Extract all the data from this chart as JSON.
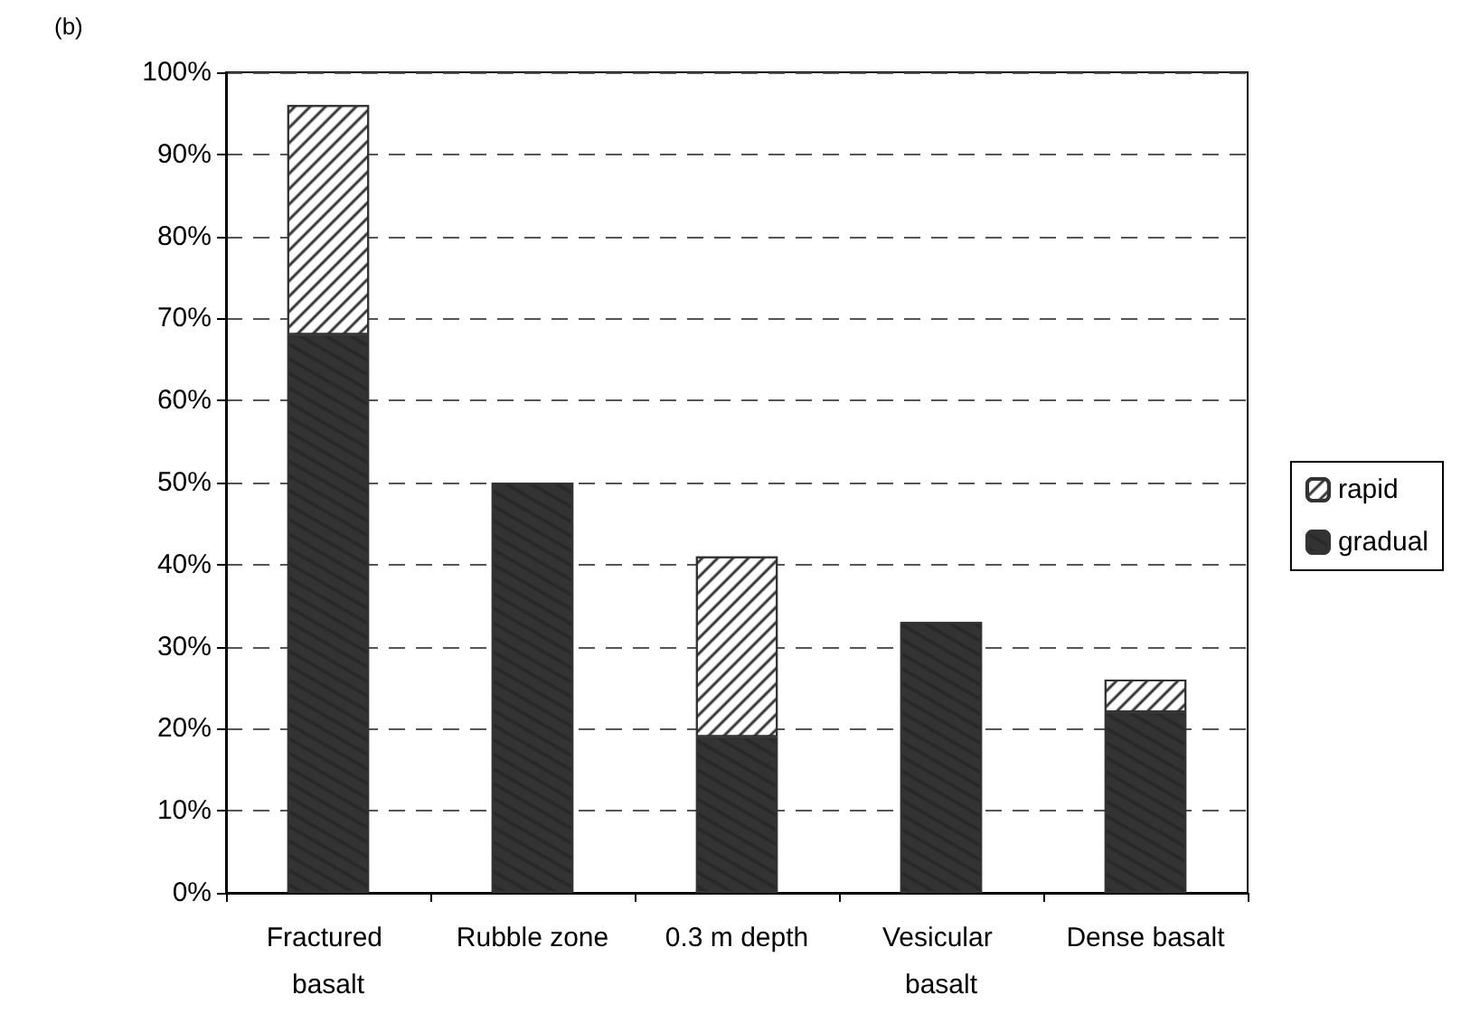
{
  "chart_data": {
    "type": "bar",
    "stacked": true,
    "categories": [
      "Fractured basalt",
      "Rubble zone",
      "0.3 m depth",
      "Vesicular basalt",
      "Dense basalt"
    ],
    "series": [
      {
        "name": "gradual",
        "color": "#333333",
        "values": [
          68,
          50,
          19,
          33,
          22
        ]
      },
      {
        "name": "rapid",
        "color": "#ffffff",
        "values": [
          28,
          null,
          22,
          null,
          4
        ]
      }
    ],
    "ylim": [
      0,
      100
    ],
    "yticks": [
      {
        "value": 0,
        "label": "0%"
      },
      {
        "value": 10,
        "label": "10%"
      },
      {
        "value": 20,
        "label": "20%"
      },
      {
        "value": 30,
        "label": "30%"
      },
      {
        "value": 40,
        "label": "40%"
      },
      {
        "value": 50,
        "label": "50%"
      },
      {
        "value": 60,
        "label": "60%"
      },
      {
        "value": 70,
        "label": "70%"
      },
      {
        "value": 80,
        "label": "80%"
      },
      {
        "value": 90,
        "label": "90%"
      },
      {
        "value": 100,
        "label": "100%"
      }
    ],
    "grid": "y",
    "legend": "right",
    "annotations": [
      "(b)"
    ]
  }
}
